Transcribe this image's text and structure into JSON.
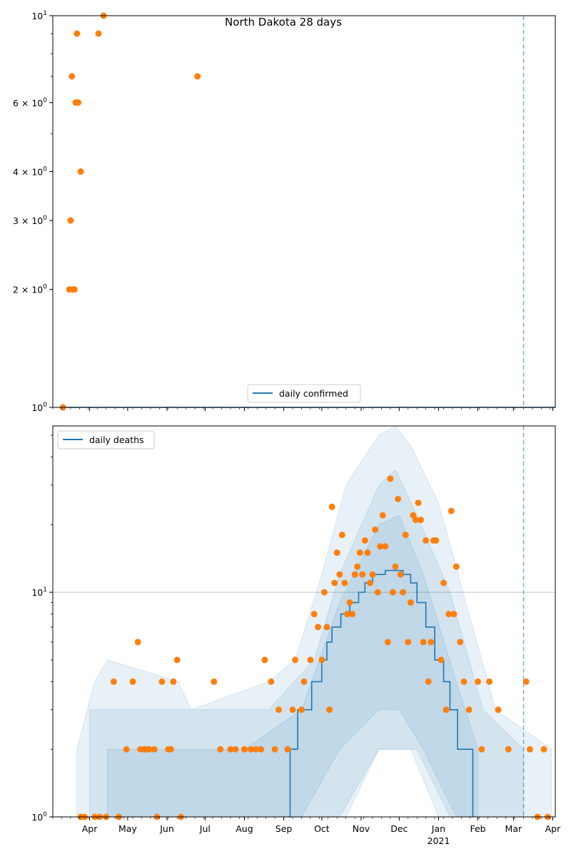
{
  "chart_data": [
    {
      "type": "scatter",
      "title": "North Dakota 28 days",
      "scale": "log",
      "ylim": [
        1,
        10
      ],
      "y_ticks": [
        {
          "value": 1,
          "base": "10",
          "exp": "0",
          "mantissa": ""
        },
        {
          "value": 2,
          "base": "10",
          "exp": "0",
          "mantissa": "2"
        },
        {
          "value": 3,
          "base": "10",
          "exp": "0",
          "mantissa": "3"
        },
        {
          "value": 4,
          "base": "10",
          "exp": "0",
          "mantissa": "4"
        },
        {
          "value": 6,
          "base": "10",
          "exp": "0",
          "mantissa": "6"
        },
        {
          "value": 10,
          "base": "10",
          "exp": "1",
          "mantissa": ""
        }
      ],
      "legend": {
        "entries": [
          "daily confirmed"
        ],
        "placement": "lower-center"
      },
      "vline_date": "2021-03-09",
      "series": [
        {
          "name": "daily confirmed",
          "kind": "line",
          "color": "#1f77b4",
          "points": [
            [
              "2020-03-10",
              1
            ],
            [
              "2021-04-03",
              1
            ]
          ]
        },
        {
          "kind": "scatter",
          "color": "#ff7f0e",
          "points": [
            [
              "2020-03-11",
              1
            ],
            [
              "2020-03-16",
              2
            ],
            [
              "2020-03-17",
              3
            ],
            [
              "2020-03-18",
              7
            ],
            [
              "2020-03-19",
              2
            ],
            [
              "2020-03-20",
              2
            ],
            [
              "2020-03-21",
              6
            ],
            [
              "2020-03-22",
              9
            ],
            [
              "2020-03-22",
              6
            ],
            [
              "2020-03-23",
              6
            ],
            [
              "2020-03-25",
              4
            ],
            [
              "2020-04-08",
              9
            ],
            [
              "2020-04-12",
              10
            ],
            [
              "2020-06-25",
              7
            ]
          ]
        }
      ]
    },
    {
      "type": "scatter",
      "scale": "log",
      "ylim": [
        1,
        55
      ],
      "grid": "y at 10",
      "y_ticks": [
        {
          "value": 1,
          "base": "10",
          "exp": "0",
          "mantissa": ""
        },
        {
          "value": 10,
          "base": "10",
          "exp": "1",
          "mantissa": ""
        }
      ],
      "x_ticks": [
        "Apr",
        "May",
        "Jun",
        "Jul",
        "Aug",
        "Sep",
        "Oct",
        "Nov",
        "Dec",
        "Jan",
        "Feb",
        "Mar",
        "Apr"
      ],
      "x_year_label": "2021",
      "legend": {
        "entries": [
          "daily deaths"
        ],
        "placement": "upper-left"
      },
      "vline_date": "2021-03-09",
      "series": [
        {
          "name": "daily deaths",
          "kind": "step",
          "color": "#1f77b4",
          "points": [
            [
              "2020-09-05",
              1
            ],
            [
              "2020-09-06",
              2
            ],
            [
              "2020-09-12",
              3
            ],
            [
              "2020-09-23",
              4
            ],
            [
              "2020-10-01",
              5
            ],
            [
              "2020-10-05",
              6
            ],
            [
              "2020-10-09",
              7
            ],
            [
              "2020-10-16",
              8
            ],
            [
              "2020-10-23",
              9
            ],
            [
              "2020-10-30",
              10
            ],
            [
              "2020-11-04",
              11
            ],
            [
              "2020-11-10",
              12
            ],
            [
              "2020-11-20",
              12.5
            ],
            [
              "2020-12-04",
              12
            ],
            [
              "2020-12-10",
              11
            ],
            [
              "2020-12-15",
              9
            ],
            [
              "2020-12-22",
              7
            ],
            [
              "2020-12-29",
              5
            ],
            [
              "2021-01-05",
              4
            ],
            [
              "2021-01-10",
              3
            ],
            [
              "2021-01-16",
              2
            ],
            [
              "2021-01-28",
              1
            ]
          ]
        },
        {
          "kind": "band",
          "color": "#1f77b4",
          "alpha": 0.1,
          "points": [
            [
              "2020-03-22",
              1,
              2
            ],
            [
              "2020-04-05",
              1,
              4
            ],
            [
              "2020-04-15",
              1,
              5
            ],
            [
              "2020-06-10",
              1,
              4
            ],
            [
              "2020-06-20",
              1,
              3
            ],
            [
              "2020-08-20",
              1,
              4
            ],
            [
              "2020-09-10",
              1,
              5
            ],
            [
              "2020-10-01",
              1,
              12
            ],
            [
              "2020-10-20",
              1,
              30
            ],
            [
              "2020-11-15",
              2,
              50
            ],
            [
              "2020-11-28",
              2,
              55
            ],
            [
              "2020-12-10",
              2,
              45
            ],
            [
              "2021-01-01",
              1,
              25
            ],
            [
              "2021-01-25",
              1,
              8
            ],
            [
              "2021-02-15",
              1,
              3
            ],
            [
              "2021-03-31",
              1,
              2
            ]
          ]
        },
        {
          "kind": "band",
          "color": "#1f77b4",
          "alpha": 0.1,
          "points": [
            [
              "2020-04-01",
              1,
              3
            ],
            [
              "2020-06-10",
              1,
              3
            ],
            [
              "2020-08-20",
              1,
              3
            ],
            [
              "2020-09-25",
              1,
              5
            ],
            [
              "2020-10-15",
              1,
              12
            ],
            [
              "2020-11-15",
              2,
              30
            ],
            [
              "2020-11-28",
              2,
              35
            ],
            [
              "2020-12-15",
              2,
              22
            ],
            [
              "2021-01-10",
              1,
              10
            ],
            [
              "2021-02-05",
              1,
              3
            ],
            [
              "2021-03-09",
              1,
              2
            ]
          ]
        },
        {
          "kind": "band",
          "color": "#1f77b4",
          "alpha": 0.1,
          "points": [
            [
              "2020-04-15",
              1,
              2
            ],
            [
              "2020-06-01",
              1,
              2
            ],
            [
              "2020-08-01",
              1,
              2
            ],
            [
              "2020-09-15",
              1,
              3
            ],
            [
              "2020-10-15",
              2,
              9
            ],
            [
              "2020-11-15",
              3,
              20
            ],
            [
              "2020-12-01",
              3,
              22
            ],
            [
              "2020-12-20",
              2,
              12
            ],
            [
              "2021-01-15",
              1,
              4
            ],
            [
              "2021-02-01",
              1,
              2
            ]
          ]
        },
        {
          "kind": "scatter",
          "color": "#ff7f0e",
          "points": [
            [
              "2020-03-25",
              1
            ],
            [
              "2020-03-28",
              1
            ],
            [
              "2020-04-05",
              1
            ],
            [
              "2020-04-09",
              1
            ],
            [
              "2020-04-14",
              1
            ],
            [
              "2020-04-20",
              4
            ],
            [
              "2020-04-24",
              1
            ],
            [
              "2020-04-30",
              2
            ],
            [
              "2020-05-05",
              4
            ],
            [
              "2020-05-09",
              6
            ],
            [
              "2020-05-11",
              2
            ],
            [
              "2020-05-14",
              2
            ],
            [
              "2020-05-16",
              2
            ],
            [
              "2020-05-18",
              2
            ],
            [
              "2020-05-22",
              2
            ],
            [
              "2020-05-24",
              1
            ],
            [
              "2020-05-28",
              4
            ],
            [
              "2020-06-02",
              2
            ],
            [
              "2020-06-04",
              2
            ],
            [
              "2020-06-06",
              4
            ],
            [
              "2020-06-09",
              5
            ],
            [
              "2020-06-12",
              1
            ],
            [
              "2020-07-08",
              4
            ],
            [
              "2020-07-13",
              2
            ],
            [
              "2020-07-21",
              2
            ],
            [
              "2020-07-25",
              2
            ],
            [
              "2020-08-01",
              2
            ],
            [
              "2020-08-06",
              2
            ],
            [
              "2020-08-10",
              2
            ],
            [
              "2020-08-14",
              2
            ],
            [
              "2020-08-17",
              5
            ],
            [
              "2020-08-22",
              4
            ],
            [
              "2020-08-25",
              2
            ],
            [
              "2020-08-28",
              3
            ],
            [
              "2020-09-04",
              2
            ],
            [
              "2020-09-08",
              3
            ],
            [
              "2020-09-10",
              5
            ],
            [
              "2020-09-15",
              3
            ],
            [
              "2020-09-17",
              4
            ],
            [
              "2020-09-22",
              5
            ],
            [
              "2020-09-25",
              8
            ],
            [
              "2020-09-28",
              7
            ],
            [
              "2020-10-01",
              5
            ],
            [
              "2020-10-03",
              10
            ],
            [
              "2020-10-05",
              7
            ],
            [
              "2020-10-07",
              3
            ],
            [
              "2020-10-09",
              24
            ],
            [
              "2020-10-11",
              11
            ],
            [
              "2020-10-13",
              15
            ],
            [
              "2020-10-15",
              12
            ],
            [
              "2020-10-17",
              18
            ],
            [
              "2020-10-19",
              11
            ],
            [
              "2020-10-21",
              8
            ],
            [
              "2020-10-23",
              9
            ],
            [
              "2020-10-25",
              8
            ],
            [
              "2020-10-27",
              12
            ],
            [
              "2020-10-29",
              13
            ],
            [
              "2020-10-31",
              15
            ],
            [
              "2020-11-02",
              12
            ],
            [
              "2020-11-04",
              17
            ],
            [
              "2020-11-06",
              15
            ],
            [
              "2020-11-08",
              11
            ],
            [
              "2020-11-10",
              12
            ],
            [
              "2020-11-12",
              19
            ],
            [
              "2020-11-14",
              10
            ],
            [
              "2020-11-16",
              16
            ],
            [
              "2020-11-18",
              22
            ],
            [
              "2020-11-20",
              16
            ],
            [
              "2020-11-22",
              6
            ],
            [
              "2020-11-24",
              32
            ],
            [
              "2020-11-26",
              10
            ],
            [
              "2020-11-28",
              13
            ],
            [
              "2020-11-30",
              26
            ],
            [
              "2020-12-02",
              12
            ],
            [
              "2020-12-04",
              10
            ],
            [
              "2020-12-06",
              18
            ],
            [
              "2020-12-08",
              6
            ],
            [
              "2020-12-10",
              9
            ],
            [
              "2020-12-12",
              22
            ],
            [
              "2020-12-14",
              21
            ],
            [
              "2020-12-16",
              25
            ],
            [
              "2020-12-18",
              21
            ],
            [
              "2020-12-20",
              6
            ],
            [
              "2020-12-22",
              17
            ],
            [
              "2020-12-24",
              4
            ],
            [
              "2020-12-26",
              6
            ],
            [
              "2020-12-28",
              17
            ],
            [
              "2020-12-30",
              17
            ],
            [
              "2021-01-03",
              5
            ],
            [
              "2021-01-05",
              11
            ],
            [
              "2021-01-07",
              3
            ],
            [
              "2021-01-09",
              8
            ],
            [
              "2021-01-11",
              23
            ],
            [
              "2021-01-13",
              8
            ],
            [
              "2021-01-15",
              13
            ],
            [
              "2021-01-18",
              6
            ],
            [
              "2021-01-21",
              4
            ],
            [
              "2021-01-25",
              3
            ],
            [
              "2021-02-01",
              4
            ],
            [
              "2021-02-04",
              2
            ],
            [
              "2021-02-10",
              4
            ],
            [
              "2021-02-17",
              3
            ],
            [
              "2021-02-25",
              2
            ],
            [
              "2021-03-11",
              4
            ],
            [
              "2021-03-14",
              2
            ],
            [
              "2021-03-20",
              1
            ],
            [
              "2021-03-25",
              2
            ],
            [
              "2021-03-28",
              1
            ]
          ]
        }
      ]
    }
  ]
}
